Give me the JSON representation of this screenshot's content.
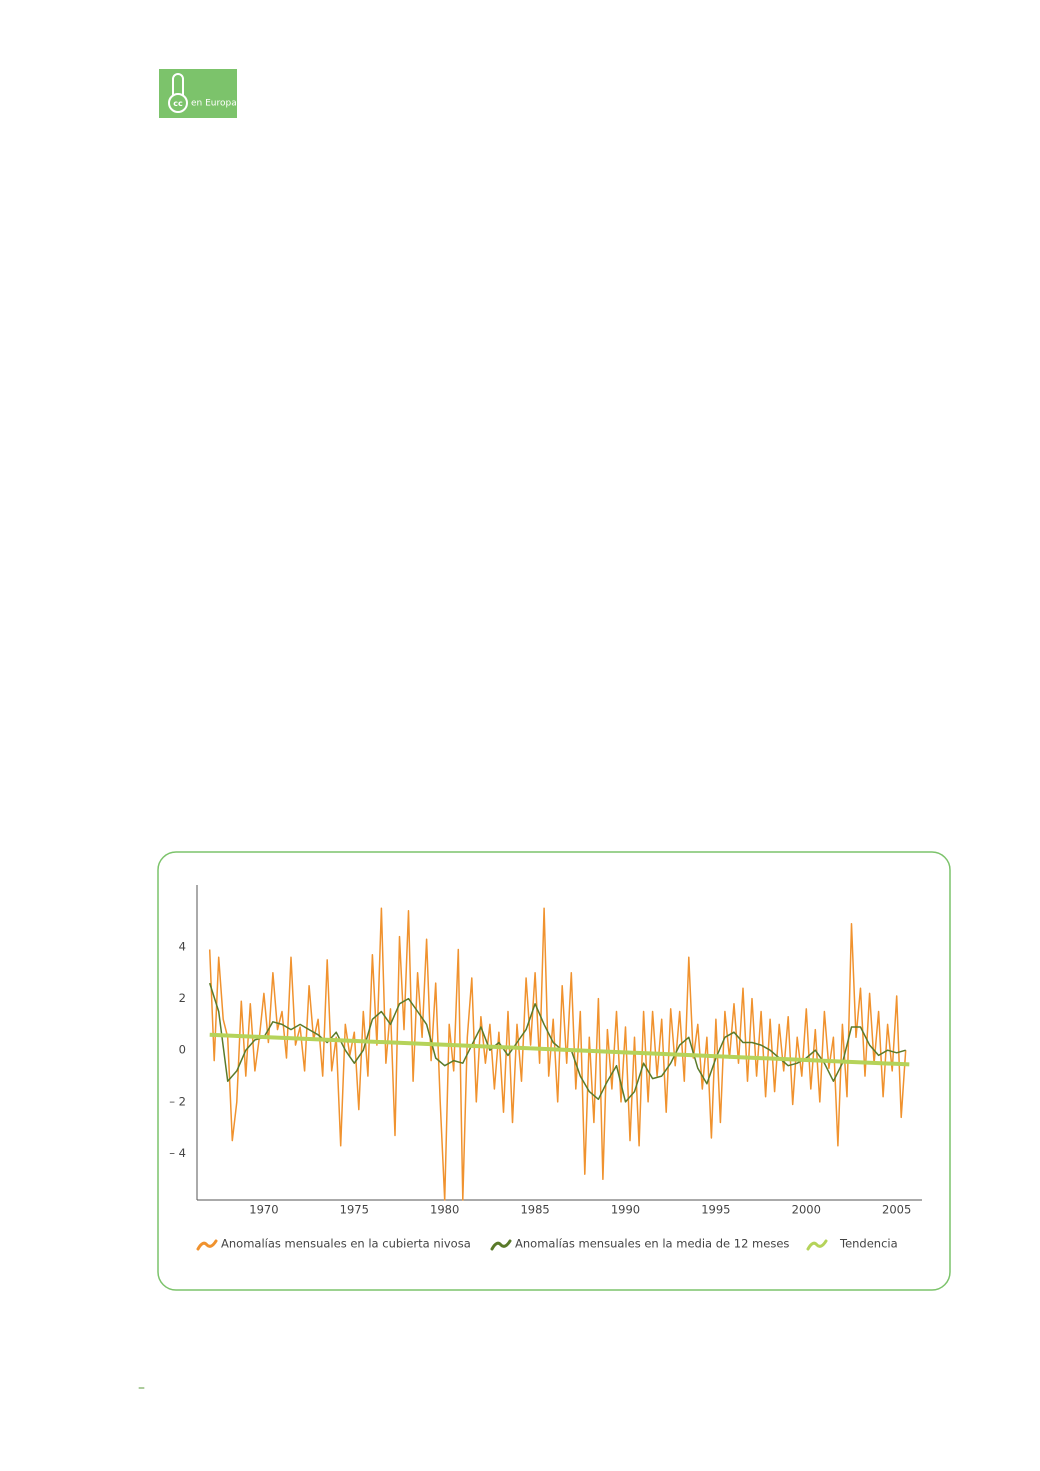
{
  "logo": {
    "icon_text": "cc",
    "text": "en Europa"
  },
  "footer": "–",
  "chart_data": {
    "type": "line",
    "xlim": [
      1966.3,
      2006.4
    ],
    "ylim": [
      -5.8,
      6.4
    ],
    "xticks": [
      1970,
      1975,
      1980,
      1985,
      1990,
      1995,
      2000,
      2005
    ],
    "yticks": [
      4,
      2,
      0,
      {
        "value": -2,
        "label": "– 2"
      },
      {
        "value": -4,
        "label": "– 4"
      }
    ],
    "grid": false,
    "legend": "bottom",
    "series": [
      {
        "name": "Anomalías mensuales en la cubierta nivosa",
        "color": "#f0922e",
        "x": [
          1967,
          1967.25,
          1967.5,
          1967.75,
          1968,
          1968.25,
          1968.5,
          1968.75,
          1969,
          1969.25,
          1969.5,
          1969.75,
          1970,
          1970.25,
          1970.5,
          1970.75,
          1971,
          1971.25,
          1971.5,
          1971.75,
          1972,
          1972.25,
          1972.5,
          1972.75,
          1973,
          1973.25,
          1973.5,
          1973.75,
          1974,
          1974.25,
          1974.5,
          1974.75,
          1975,
          1975.25,
          1975.5,
          1975.75,
          1976,
          1976.25,
          1976.5,
          1976.75,
          1977,
          1977.25,
          1977.5,
          1977.75,
          1978,
          1978.25,
          1978.5,
          1978.75,
          1979,
          1979.25,
          1979.5,
          1979.75,
          1980,
          1980.25,
          1980.5,
          1980.75,
          1981,
          1981.25,
          1981.5,
          1981.75,
          1982,
          1982.25,
          1982.5,
          1982.75,
          1983,
          1983.25,
          1983.5,
          1983.75,
          1984,
          1984.25,
          1984.5,
          1984.75,
          1985,
          1985.25,
          1985.5,
          1985.75,
          1986,
          1986.25,
          1986.5,
          1986.75,
          1987,
          1987.25,
          1987.5,
          1987.75,
          1988,
          1988.25,
          1988.5,
          1988.75,
          1989,
          1989.25,
          1989.5,
          1989.75,
          1990,
          1990.25,
          1990.5,
          1990.75,
          1991,
          1991.25,
          1991.5,
          1991.75,
          1992,
          1992.25,
          1992.5,
          1992.75,
          1993,
          1993.25,
          1993.5,
          1993.75,
          1994,
          1994.25,
          1994.5,
          1994.75,
          1995,
          1995.25,
          1995.5,
          1995.75,
          1996,
          1996.25,
          1996.5,
          1996.75,
          1997,
          1997.25,
          1997.5,
          1997.75,
          1998,
          1998.25,
          1998.5,
          1998.75,
          1999,
          1999.25,
          1999.5,
          1999.75,
          2000,
          2000.25,
          2000.5,
          2000.75,
          2001,
          2001.25,
          2001.5,
          2001.75,
          2002,
          2002.25,
          2002.5,
          2002.75,
          2003,
          2003.25,
          2003.5,
          2003.75,
          2004,
          2004.25,
          2004.5,
          2004.75,
          2005,
          2005.25,
          2005.5
        ],
        "values": [
          3.9,
          -0.4,
          3.6,
          1.2,
          0.5,
          -3.5,
          -2.0,
          1.9,
          -1.0,
          1.8,
          -0.8,
          0.5,
          2.2,
          0.3,
          3.0,
          0.8,
          1.5,
          -0.3,
          3.6,
          0.2,
          0.9,
          -0.8,
          2.5,
          0.4,
          1.2,
          -1.0,
          3.5,
          -0.8,
          0.5,
          -3.7,
          1.0,
          -0.2,
          0.7,
          -2.3,
          1.5,
          -1.0,
          3.7,
          0.2,
          5.5,
          -0.5,
          1.6,
          -3.3,
          4.4,
          0.8,
          5.4,
          -1.2,
          3.0,
          0.5,
          4.3,
          -0.4,
          2.6,
          -2.0,
          -5.8,
          1.0,
          -0.8,
          3.9,
          -5.8,
          0.5,
          2.8,
          -2.0,
          1.3,
          -0.5,
          1.0,
          -1.5,
          0.7,
          -2.4,
          1.5,
          -2.8,
          1.0,
          -1.2,
          2.8,
          0.2,
          3.0,
          -0.5,
          5.5,
          -1.0,
          1.2,
          -2.0,
          2.5,
          -0.5,
          3.0,
          -1.5,
          1.5,
          -4.8,
          0.5,
          -2.8,
          2.0,
          -5.0,
          0.8,
          -1.5,
          1.5,
          -2.0,
          0.9,
          -3.5,
          0.5,
          -3.7,
          1.5,
          -2.0,
          1.5,
          -1.0,
          1.2,
          -2.4,
          1.6,
          -0.6,
          1.5,
          -1.2,
          3.6,
          -0.3,
          1.0,
          -1.5,
          0.5,
          -3.4,
          1.2,
          -2.8,
          1.5,
          -0.3,
          1.8,
          -0.5,
          2.4,
          -1.2,
          2.0,
          -1.0,
          1.5,
          -1.8,
          1.2,
          -1.6,
          1.0,
          -0.8,
          1.3,
          -2.1,
          0.5,
          -1.0,
          1.6,
          -1.5,
          0.8,
          -2.0,
          1.5,
          -0.7,
          0.5,
          -3.7,
          1.0,
          -1.8,
          4.9,
          0.5,
          2.4,
          -1.0,
          2.2,
          -0.5,
          1.5,
          -1.8,
          1.0,
          -0.8,
          2.1,
          -2.6,
          0.0
        ]
      },
      {
        "name": "Anomalías mensuales en la media de 12 meses",
        "color": "#5a7a2a",
        "x": [
          1967,
          1967.5,
          1968,
          1968.5,
          1969,
          1969.5,
          1970,
          1970.5,
          1971,
          1971.5,
          1972,
          1972.5,
          1973,
          1973.5,
          1974,
          1974.5,
          1975,
          1975.5,
          1976,
          1976.5,
          1977,
          1977.5,
          1978,
          1978.5,
          1979,
          1979.5,
          1980,
          1980.5,
          1981,
          1981.5,
          1982,
          1982.5,
          1983,
          1983.5,
          1984,
          1984.5,
          1985,
          1985.5,
          1986,
          1986.5,
          1987,
          1987.5,
          1988,
          1988.5,
          1989,
          1989.5,
          1990,
          1990.5,
          1991,
          1991.5,
          1992,
          1992.5,
          1993,
          1993.5,
          1994,
          1994.5,
          1995,
          1995.5,
          1996,
          1996.5,
          1997,
          1997.5,
          1998,
          1998.5,
          1999,
          1999.5,
          2000,
          2000.5,
          2001,
          2001.5,
          2002,
          2002.5,
          2003,
          2003.5,
          2004,
          2004.5,
          2005,
          2005.5
        ],
        "values": [
          2.6,
          1.5,
          -1.2,
          -0.8,
          0.0,
          0.4,
          0.5,
          1.1,
          1.0,
          0.8,
          1.0,
          0.8,
          0.6,
          0.3,
          0.7,
          0.0,
          -0.5,
          0.0,
          1.2,
          1.5,
          1.0,
          1.8,
          2.0,
          1.5,
          1.0,
          -0.3,
          -0.6,
          -0.4,
          -0.5,
          0.2,
          0.9,
          0.0,
          0.3,
          -0.2,
          0.3,
          0.8,
          1.8,
          1.0,
          0.3,
          0.0,
          0.0,
          -1.0,
          -1.6,
          -1.9,
          -1.2,
          -0.6,
          -2.0,
          -1.6,
          -0.5,
          -1.1,
          -1.0,
          -0.5,
          0.2,
          0.5,
          -0.7,
          -1.3,
          -0.3,
          0.5,
          0.7,
          0.3,
          0.3,
          0.2,
          0.0,
          -0.3,
          -0.6,
          -0.5,
          -0.3,
          0.0,
          -0.5,
          -1.2,
          -0.5,
          0.9,
          0.9,
          0.2,
          -0.2,
          0.0,
          -0.1,
          0.0
        ]
      },
      {
        "name": "Tendencia",
        "color": "#b5d35a",
        "x": [
          1967,
          2005.7
        ],
        "values": [
          0.6,
          -0.55
        ]
      }
    ]
  }
}
